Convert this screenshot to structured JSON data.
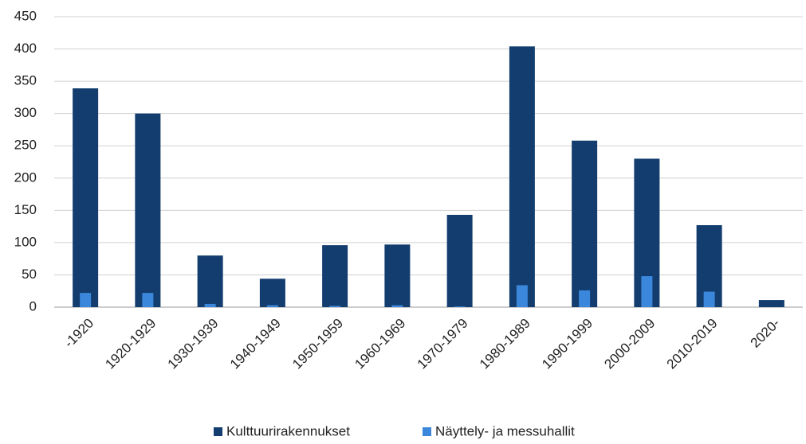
{
  "chart_data": {
    "type": "bar",
    "categories": [
      "-1920",
      "1920-1929",
      "1930-1939",
      "1940-1949",
      "1950-1959",
      "1960-1969",
      "1970-1979",
      "1980-1989",
      "1990-1999",
      "2000-2009",
      "2010-2019",
      "2020-"
    ],
    "series": [
      {
        "name": "Kulttuurirakennukset",
        "color": "#133d6e",
        "values": [
          339,
          300,
          80,
          44,
          96,
          97,
          143,
          404,
          258,
          230,
          127,
          11
        ]
      },
      {
        "name": "Näyttely- ja messuhallit",
        "color": "#3a87db",
        "values": [
          22,
          22,
          5,
          3,
          2,
          3,
          1,
          34,
          26,
          48,
          24,
          0
        ]
      }
    ],
    "ylim": [
      0,
      450
    ],
    "yticks": [
      0,
      50,
      100,
      150,
      200,
      250,
      300,
      350,
      400,
      450
    ],
    "grid": true,
    "legend": "bottom"
  }
}
